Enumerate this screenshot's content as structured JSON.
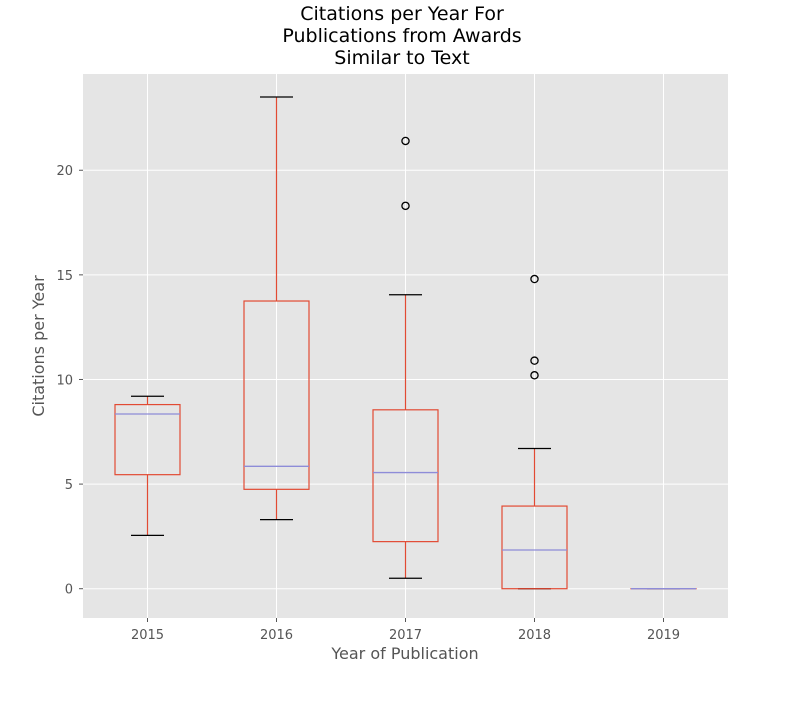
{
  "chart_data": {
    "type": "box",
    "title_lines": [
      "Citations per Year For",
      "Publications from Awards",
      "Similar to Text"
    ],
    "xlabel": "Year of Publication",
    "ylabel": "Citations per Year",
    "categories": [
      "2015",
      "2016",
      "2017",
      "2018",
      "2019"
    ],
    "y_ticks": [
      0,
      5,
      10,
      15,
      20
    ],
    "ylim": [
      -1.4,
      24.6
    ],
    "grid": true,
    "boxes": [
      {
        "category": "2015",
        "whisker_low": 2.55,
        "q1": 5.45,
        "median": 8.35,
        "q3": 8.8,
        "whisker_high": 9.2,
        "outliers": []
      },
      {
        "category": "2016",
        "whisker_low": 3.3,
        "q1": 4.75,
        "median": 5.85,
        "q3": 13.75,
        "whisker_high": 23.5,
        "outliers": []
      },
      {
        "category": "2017",
        "whisker_low": 0.5,
        "q1": 2.25,
        "median": 5.55,
        "q3": 8.55,
        "whisker_high": 14.05,
        "outliers": [
          18.3,
          21.4
        ]
      },
      {
        "category": "2018",
        "whisker_low": 0.0,
        "q1": 0.0,
        "median": 1.85,
        "q3": 3.95,
        "whisker_high": 6.7,
        "outliers": [
          10.2,
          10.9,
          14.8
        ]
      },
      {
        "category": "2019",
        "whisker_low": 0.0,
        "q1": 0.0,
        "median": 0.0,
        "q3": 0.0,
        "whisker_high": 0.0,
        "outliers": []
      }
    ],
    "colors": {
      "background": "#e5e5e5",
      "grid": "#ffffff",
      "box": "#e24a33",
      "median": "#8e8cd8",
      "whisker_cap": "#000000",
      "outlier": "#000000"
    }
  }
}
